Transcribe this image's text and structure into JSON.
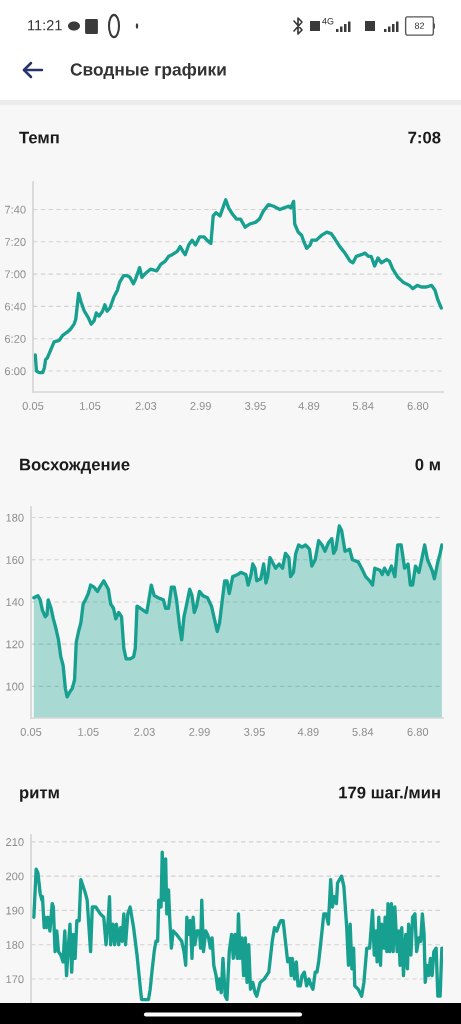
{
  "chart_data": [
    {
      "type": "other",
      "title": "Сводные графики",
      "annotations": [
        "11:21",
        "4G",
        "82"
      ]
    },
    {
      "type": "line",
      "title": "Темп",
      "annotations": [
        "7:08"
      ],
      "color": "#17a08f",
      "grid": "y",
      "xlim": [
        0.05,
        7.24
      ],
      "xticks": [
        0.05,
        1.05,
        2.03,
        2.99,
        3.95,
        4.89,
        5.84,
        {
          "value": 6.8,
          "label": "6.80"
        }
      ],
      "ylim": [
        347,
        477
      ],
      "yticks": [
        {
          "value": 360,
          "label": "6:00"
        },
        {
          "value": 380,
          "label": "6:20"
        },
        {
          "value": 400,
          "label": "6:40"
        },
        {
          "value": 420,
          "label": "7:00"
        },
        {
          "value": 440,
          "label": "7:20"
        },
        {
          "value": 460,
          "label": "7:40"
        }
      ],
      "x": [
        0.09,
        0.11,
        0.16,
        0.22,
        0.25,
        0.27,
        0.3,
        0.36,
        0.42,
        0.51,
        0.57,
        0.65,
        0.71,
        0.77,
        0.8,
        0.85,
        0.89,
        0.95,
        1.02,
        1.07,
        1.12,
        1.16,
        1.21,
        1.27,
        1.31,
        1.35,
        1.4,
        1.47,
        1.53,
        1.57,
        1.64,
        1.7,
        1.75,
        1.81,
        1.85,
        1.92,
        1.96,
        2.01,
        2.11,
        2.22,
        2.29,
        2.37,
        2.43,
        2.49,
        2.58,
        2.63,
        2.68,
        2.72,
        2.78,
        2.84,
        2.9,
        2.97,
        3.05,
        3.1,
        3.17,
        3.21,
        3.26,
        3.33,
        3.38,
        3.43,
        3.48,
        3.55,
        3.62,
        3.69,
        3.77,
        3.85,
        3.95,
        4.02,
        4.09,
        4.18,
        4.27,
        4.38,
        4.45,
        4.53,
        4.57,
        4.62,
        4.64,
        4.7,
        4.76,
        4.8,
        4.85,
        4.91,
        4.94,
        5.02,
        5.11,
        5.2,
        5.28,
        5.34,
        5.43,
        5.52,
        5.61,
        5.66,
        5.72,
        5.81,
        5.87,
        5.93,
        5.98,
        6.04,
        6.1,
        6.16,
        6.25,
        6.3,
        6.36,
        6.45,
        6.54,
        6.65,
        6.71,
        6.79,
        6.86,
        6.95,
        7.04,
        7.1,
        7.15,
        7.21
      ],
      "values": [
        370,
        360,
        359,
        359,
        362,
        367,
        368,
        373,
        378,
        379,
        382,
        384,
        386,
        389,
        392,
        408,
        403,
        397,
        393,
        389,
        391,
        396,
        394,
        397,
        401,
        397,
        399,
        406,
        410,
        415,
        419,
        419,
        418,
        414,
        417,
        424,
        418,
        420,
        423,
        422,
        426,
        428,
        431,
        432,
        434,
        437,
        434,
        432,
        438,
        441,
        438,
        443,
        443,
        441,
        439,
        456,
        458,
        456,
        461,
        466,
        461,
        457,
        454,
        454,
        449,
        451,
        452,
        454,
        459,
        463,
        462,
        460,
        461,
        462,
        461,
        465,
        451,
        446,
        444,
        440,
        436,
        438,
        441,
        441,
        444,
        446,
        445,
        442,
        437,
        433,
        428,
        427,
        431,
        432,
        433,
        431,
        431,
        425,
        430,
        427,
        429,
        428,
        423,
        418,
        415,
        413,
        411,
        413,
        412,
        412,
        413,
        410,
        404,
        399
      ]
    },
    {
      "type": "area",
      "title": "Восхождение",
      "annotations": [
        "0 м"
      ],
      "color": "#17a08f",
      "grid": "y",
      "xlim": [
        0.05,
        7.24
      ],
      "xticks": [
        0.05,
        1.05,
        2.03,
        2.99,
        3.95,
        4.89,
        5.84,
        {
          "value": 6.8,
          "label": "6.80"
        }
      ],
      "ylim": [
        85,
        185
      ],
      "yticks": [
        100,
        120,
        140,
        160,
        180
      ],
      "x": [
        0.1,
        0.17,
        0.21,
        0.25,
        0.3,
        0.33,
        0.35,
        0.4,
        0.44,
        0.48,
        0.53,
        0.57,
        0.61,
        0.65,
        0.68,
        0.72,
        0.77,
        0.81,
        0.84,
        0.88,
        0.92,
        0.96,
        1.0,
        1.05,
        1.09,
        1.15,
        1.21,
        1.25,
        1.32,
        1.4,
        1.44,
        1.49,
        1.53,
        1.58,
        1.63,
        1.67,
        1.71,
        1.78,
        1.84,
        1.87,
        1.9,
        1.96,
        2.01,
        2.07,
        2.15,
        2.2,
        2.27,
        2.36,
        2.4,
        2.45,
        2.5,
        2.55,
        2.59,
        2.64,
        2.68,
        2.72,
        2.76,
        2.82,
        2.86,
        2.9,
        2.94,
        2.99,
        3.05,
        3.13,
        3.2,
        3.25,
        3.3,
        3.34,
        3.38,
        3.43,
        3.47,
        3.51,
        3.57,
        3.66,
        3.71,
        3.8,
        3.84,
        3.89,
        3.92,
        3.96,
        3.99,
        4.06,
        4.11,
        4.15,
        4.18,
        4.22,
        4.26,
        4.32,
        4.38,
        4.44,
        4.49,
        4.55,
        4.58,
        4.63,
        4.67,
        4.72,
        4.78,
        4.84,
        4.91,
        4.95,
        5.01,
        5.07,
        5.13,
        5.18,
        5.24,
        5.3,
        5.33,
        5.37,
        5.43,
        5.47,
        5.53,
        5.61,
        5.66,
        5.76,
        5.82,
        5.89,
        5.96,
        6.01,
        6.05,
        6.14,
        6.18,
        6.22,
        6.28,
        6.34,
        6.4,
        6.45,
        6.51,
        6.57,
        6.63,
        6.67,
        6.71,
        6.76,
        6.82,
        6.86,
        6.92,
        6.97,
        7.05,
        7.09,
        7.15,
        7.19,
        7.22
      ],
      "values": [
        142,
        143,
        141,
        136,
        133,
        134,
        141,
        137,
        132,
        128,
        122,
        114,
        110,
        99,
        95,
        97,
        99,
        103,
        121,
        126,
        130,
        139,
        141,
        144,
        148,
        147,
        145,
        147,
        150,
        146,
        139,
        137,
        132,
        135,
        133,
        118,
        113,
        113,
        114,
        118,
        138,
        137,
        136,
        135,
        148,
        143,
        142,
        141,
        137,
        137,
        147,
        147,
        141,
        129,
        122,
        133,
        138,
        146,
        143,
        135,
        138,
        145,
        143,
        142,
        138,
        132,
        126,
        130,
        139,
        150,
        150,
        144,
        152,
        153,
        154,
        153,
        148,
        153,
        158,
        156,
        150,
        151,
        158,
        149,
        152,
        161,
        159,
        156,
        158,
        156,
        163,
        161,
        152,
        154,
        163,
        167,
        166,
        167,
        165,
        157,
        160,
        169,
        167,
        164,
        168,
        170,
        163,
        165,
        176,
        174,
        164,
        165,
        160,
        159,
        156,
        152,
        150,
        148,
        156,
        155,
        153,
        156,
        153,
        157,
        152,
        167,
        167,
        156,
        158,
        148,
        148,
        157,
        154,
        159,
        167,
        160,
        155,
        151,
        159,
        163,
        167
      ]
    },
    {
      "type": "line",
      "title": "ритм",
      "annotations": [
        "179 шаг./мин"
      ],
      "color": "#17a08f",
      "grid": "y",
      "tick_labels": "y",
      "xlim": [
        0.05,
        7.24
      ],
      "ylim": [
        163,
        212
      ],
      "yticks": [
        170,
        180,
        190,
        200,
        210
      ],
      "x": [
        0.1,
        0.14,
        0.17,
        0.21,
        0.24,
        0.25,
        0.28,
        0.3,
        0.32,
        0.35,
        0.38,
        0.42,
        0.44,
        0.47,
        0.5,
        0.53,
        0.57,
        0.61,
        0.64,
        0.67,
        0.7,
        0.73,
        0.76,
        0.79,
        0.82,
        0.85,
        0.89,
        0.92,
        0.96,
        1.0,
        1.03,
        1.07,
        1.09,
        1.12,
        1.18,
        1.26,
        1.32,
        1.36,
        1.4,
        1.42,
        1.44,
        1.48,
        1.51,
        1.54,
        1.58,
        1.61,
        1.64,
        1.67,
        1.7,
        1.74,
        1.78,
        1.84,
        1.9,
        1.96,
        1.98,
        2.1,
        2.13,
        2.16,
        2.2,
        2.23,
        2.26,
        2.28,
        2.32,
        2.34,
        2.37,
        2.4,
        2.42,
        2.45,
        2.47,
        2.5,
        2.53,
        2.59,
        2.68,
        2.72,
        2.75,
        2.77,
        2.8,
        2.83,
        2.86,
        2.88,
        2.91,
        2.95,
        2.99,
        3.01,
        3.03,
        3.06,
        3.1,
        3.13,
        3.15,
        3.18,
        3.21,
        3.24,
        3.28,
        3.31,
        3.34,
        3.37,
        3.4,
        3.44,
        3.47,
        3.51,
        3.55,
        3.58,
        3.61,
        3.65,
        3.67,
        3.7,
        3.73,
        3.76,
        3.79,
        3.82,
        3.85,
        3.88,
        3.92,
        3.96,
        3.99,
        4.05,
        4.12,
        4.2,
        4.26,
        4.3,
        4.34,
        4.38,
        4.41,
        4.45,
        4.49,
        4.53,
        4.57,
        4.59,
        4.61,
        4.65,
        4.68,
        4.71,
        4.75,
        4.78,
        4.82,
        4.86,
        4.9,
        4.94,
        4.97,
        5.01,
        5.04,
        5.07,
        5.11,
        5.16,
        5.2,
        5.24,
        5.28,
        5.31,
        5.34,
        5.38,
        5.4,
        5.47,
        5.51,
        5.56,
        5.59,
        5.62,
        5.65,
        5.68,
        5.7,
        5.76,
        5.82,
        5.86,
        5.91,
        5.96,
        6.01,
        6.04,
        6.07,
        6.09,
        6.12,
        6.15,
        6.17,
        6.21,
        6.23,
        6.26,
        6.28,
        6.31,
        6.34,
        6.37,
        6.4,
        6.44,
        6.47,
        6.49,
        6.52,
        6.55,
        6.59,
        6.62,
        6.64,
        6.68,
        6.71,
        6.75,
        6.78,
        6.82,
        6.85,
        6.88,
        6.91,
        6.93,
        6.96,
        6.99,
        7.02,
        7.05,
        7.08,
        7.12,
        7.15,
        7.19,
        7.22
      ],
      "values": [
        188,
        202,
        201,
        195,
        193,
        194,
        185,
        188,
        185,
        188,
        184,
        192,
        191,
        178,
        184,
        178,
        177,
        175,
        184,
        171,
        179,
        186,
        172,
        183,
        176,
        187,
        187,
        199,
        197,
        195,
        193,
        183,
        178,
        191,
        191,
        189,
        188,
        180,
        188,
        194,
        180,
        186,
        180,
        186,
        180,
        185,
        181,
        189,
        180,
        189,
        191,
        185,
        177,
        167,
        164,
        164,
        167,
        172,
        178,
        181,
        181,
        193,
        191,
        207,
        193,
        205,
        189,
        196,
        188,
        179,
        184,
        183,
        181,
        178,
        174,
        188,
        183,
        187,
        176,
        188,
        180,
        184,
        184,
        179,
        193,
        178,
        184,
        183,
        182,
        179,
        182,
        174,
        171,
        167,
        170,
        166,
        176,
        165,
        164,
        178,
        183,
        176,
        183,
        176,
        189,
        176,
        182,
        171,
        182,
        169,
        180,
        167,
        169,
        166,
        165,
        169,
        170,
        172,
        181,
        185,
        184,
        186,
        187,
        187,
        181,
        175,
        176,
        171,
        176,
        170,
        175,
        168,
        168,
        171,
        172,
        168,
        170,
        168,
        167,
        172,
        172,
        175,
        181,
        189,
        189,
        186,
        199,
        191,
        194,
        192,
        198,
        200,
        197,
        185,
        174,
        186,
        173,
        179,
        168,
        167,
        165,
        169,
        179,
        179,
        190,
        177,
        184,
        175,
        188,
        174,
        186,
        179,
        188,
        178,
        192,
        178,
        192,
        178,
        191,
        178,
        184,
        174,
        185,
        171,
        183,
        173,
        186,
        177,
        188,
        189,
        178,
        182,
        181,
        189,
        183,
        169,
        174,
        171,
        176,
        171,
        178,
        179,
        165,
        165,
        179
      ]
    }
  ]
}
